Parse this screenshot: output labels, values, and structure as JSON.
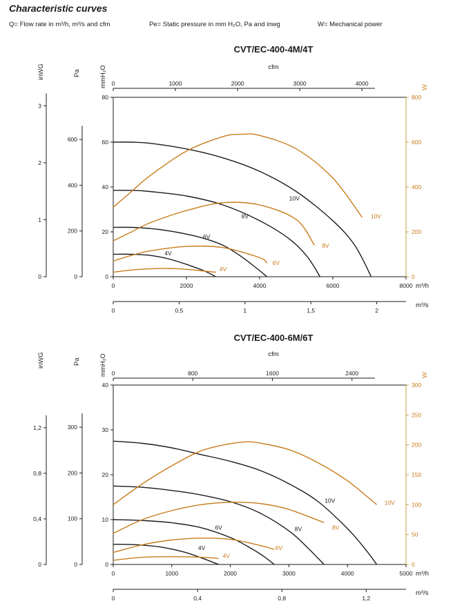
{
  "page": {
    "title": "Characteristic curves",
    "legend_flow": "Q= Flow rate in m³/h, m³/s and cfm",
    "legend_pressure": "Pe= Static pressure in mm H₂O, Pa and inwg",
    "legend_power": "W= Mechanical power"
  },
  "colors": {
    "pressure": "#1a1a1a",
    "power": "#c87b1a",
    "axis": "#1a1a1a",
    "power_axis": "#c8a040"
  },
  "chart_data": [
    {
      "type": "line",
      "title": "CVT/EC-400-4M/4T",
      "xlabel": "m³/h",
      "xlim": [
        0,
        8000
      ],
      "x_ticks": [
        0,
        2000,
        4000,
        6000,
        8000
      ],
      "x_tick_labels": [
        "0",
        "2000",
        "4000",
        "6000",
        "8000"
      ],
      "x2_label": "m³/s",
      "x2_ticks": [
        0,
        0.5,
        1,
        1.5,
        2
      ],
      "x2_tick_labels": [
        "0",
        "0,5",
        "1",
        "1,5",
        "2"
      ],
      "top_label": "cfm",
      "top_ticks": [
        0,
        1000,
        2000,
        3000,
        4000
      ],
      "top_tick_labels": [
        "0",
        "1000",
        "2000",
        "3000",
        "4000"
      ],
      "ylabel": "mmH₂O",
      "ylim": [
        0,
        80
      ],
      "y_ticks": [
        0,
        20,
        40,
        60,
        80
      ],
      "y_tick_labels": [
        "0",
        "20",
        "40",
        "60",
        "80"
      ],
      "pa_label": "Pa",
      "pa_ticks": [
        0,
        200,
        400,
        600
      ],
      "pa_tick_labels": [
        "0",
        "200",
        "400",
        "600"
      ],
      "inwg_label": "inWG",
      "inwg_ticks": [
        0,
        1,
        2,
        3
      ],
      "inwg_tick_labels": [
        "0",
        "1",
        "2",
        "3"
      ],
      "y2_label": "W",
      "y2lim": [
        0,
        800
      ],
      "y2_ticks": [
        0,
        200,
        400,
        600,
        800
      ],
      "y2_tick_labels": [
        "0",
        "200",
        "400",
        "600",
        "800"
      ],
      "pressure_series": [
        {
          "name": "10V",
          "x": [
            0,
            500,
            1000,
            2000,
            3000,
            4000,
            5000,
            6000,
            6600,
            7050
          ],
          "y": [
            60,
            60,
            59.5,
            57,
            53,
            47,
            38,
            25,
            14,
            0
          ]
        },
        {
          "name": "8V",
          "x": [
            0,
            500,
            1000,
            2000,
            3000,
            4000,
            4800,
            5300,
            5650
          ],
          "y": [
            38.5,
            38.5,
            38,
            36,
            32,
            25,
            17,
            9,
            0
          ]
        },
        {
          "name": "6V",
          "x": [
            0,
            500,
            1000,
            1500,
            2000,
            2500,
            3000,
            3500,
            3900,
            4200
          ],
          "y": [
            22,
            22,
            21.5,
            20.5,
            19,
            17,
            14,
            9,
            4,
            0
          ]
        },
        {
          "name": "4V",
          "x": [
            0,
            500,
            1000,
            1500,
            2000,
            2500,
            2800
          ],
          "y": [
            10,
            10,
            9.5,
            8,
            5.5,
            2.5,
            0
          ]
        }
      ],
      "power_series": [
        {
          "name": "10V",
          "x": [
            0,
            500,
            1000,
            2000,
            3000,
            3500,
            4000,
            5000,
            6000,
            6800
          ],
          "y": [
            310,
            380,
            450,
            560,
            625,
            635,
            630,
            570,
            440,
            265
          ]
        },
        {
          "name": "8V",
          "x": [
            0,
            500,
            1000,
            2000,
            3000,
            4000,
            5000,
            5500
          ],
          "y": [
            160,
            200,
            240,
            295,
            330,
            320,
            255,
            140
          ]
        },
        {
          "name": "6V",
          "x": [
            0,
            500,
            1000,
            2000,
            3000,
            4000,
            4200
          ],
          "y": [
            70,
            95,
            115,
            135,
            130,
            85,
            60
          ]
        },
        {
          "name": "4V",
          "x": [
            0,
            500,
            1000,
            1500,
            2000,
            2500,
            2800
          ],
          "y": [
            20,
            30,
            35,
            37,
            33,
            25,
            20
          ]
        }
      ],
      "pressure_labels": [
        {
          "text": "10V",
          "x": 4950,
          "y": 34
        },
        {
          "text": "8V",
          "x": 3600,
          "y": 26
        },
        {
          "text": "6V",
          "x": 2550,
          "y": 17
        },
        {
          "text": "4V",
          "x": 1500,
          "y": 9.5
        }
      ],
      "power_labels": [
        {
          "text": "10V",
          "x": 7180,
          "y": 260
        },
        {
          "text": "8V",
          "x": 5800,
          "y": 130
        },
        {
          "text": "6V",
          "x": 4450,
          "y": 52
        },
        {
          "text": "4V",
          "x": 3000,
          "y": 25
        }
      ]
    },
    {
      "type": "line",
      "title": "CVT/EC-400-6M/6T",
      "xlabel": "m³/h",
      "xlim": [
        0,
        5000
      ],
      "x_ticks": [
        0,
        1000,
        2000,
        3000,
        4000,
        5000
      ],
      "x_tick_labels": [
        "0",
        "1000",
        "2000",
        "3000",
        "4000",
        "5000"
      ],
      "x2_label": "m³/s",
      "x2_ticks": [
        0,
        0.4,
        0.8,
        1.2
      ],
      "x2_tick_labels": [
        "0",
        "0,4",
        "0,8",
        "1,2"
      ],
      "top_label": "cfm",
      "top_ticks": [
        0,
        800,
        1600,
        2400
      ],
      "top_tick_labels": [
        "0",
        "800",
        "1600",
        "2400"
      ],
      "ylabel": "mmH₂O",
      "ylim": [
        0,
        40
      ],
      "y_ticks": [
        0,
        10,
        20,
        30,
        40
      ],
      "y_tick_labels": [
        "0",
        "10",
        "20",
        "30",
        "40"
      ],
      "pa_label": "Pa",
      "pa_ticks": [
        0,
        100,
        200,
        300
      ],
      "pa_tick_labels": [
        "0",
        "100",
        "200",
        "300"
      ],
      "inwg_label": "inWG",
      "inwg_ticks": [
        0,
        0.4,
        0.8,
        1.2
      ],
      "inwg_tick_labels": [
        "0",
        "0,4",
        "0,8",
        "1,2"
      ],
      "y2_label": "W",
      "y2lim": [
        0,
        300
      ],
      "y2_ticks": [
        0,
        50,
        100,
        150,
        200,
        250,
        300
      ],
      "y2_tick_labels": [
        "0",
        "50",
        "100",
        "150",
        "200",
        "250",
        "300"
      ],
      "pressure_series": [
        {
          "name": "10V",
          "x": [
            0,
            500,
            1000,
            1500,
            2000,
            2500,
            3000,
            3500,
            4000,
            4300,
            4500
          ],
          "y": [
            27.5,
            27,
            26,
            24.5,
            23,
            21,
            18,
            14,
            8,
            3.5,
            0
          ]
        },
        {
          "name": "8V",
          "x": [
            0,
            500,
            1000,
            1500,
            2000,
            2500,
            3000,
            3300,
            3600
          ],
          "y": [
            17.5,
            17.2,
            16.5,
            15.5,
            14,
            11.5,
            7.5,
            4,
            0
          ]
        },
        {
          "name": "6V",
          "x": [
            0,
            500,
            1000,
            1500,
            2000,
            2300,
            2550,
            2750
          ],
          "y": [
            10,
            9.8,
            9.3,
            8.2,
            6,
            4,
            2,
            0
          ]
        },
        {
          "name": "4V",
          "x": [
            0,
            400,
            800,
            1200,
            1500,
            1800
          ],
          "y": [
            4.5,
            4.4,
            3.9,
            2.8,
            1.5,
            0
          ]
        }
      ],
      "power_series": [
        {
          "name": "10V",
          "x": [
            0,
            500,
            1000,
            1500,
            2000,
            2300,
            2500,
            3000,
            3500,
            4000,
            4500
          ],
          "y": [
            100,
            135,
            165,
            190,
            202,
            205,
            203,
            192,
            170,
            140,
            100
          ]
        },
        {
          "name": "8V",
          "x": [
            0,
            500,
            1000,
            1500,
            2000,
            2500,
            3000,
            3600
          ],
          "y": [
            52,
            75,
            90,
            100,
            104,
            102,
            92,
            70
          ]
        },
        {
          "name": "6V",
          "x": [
            0,
            500,
            1000,
            1500,
            2000,
            2500,
            2750
          ],
          "y": [
            20,
            33,
            41,
            44,
            42,
            32,
            25
          ]
        },
        {
          "name": "4V",
          "x": [
            0,
            500,
            1000,
            1500,
            1800
          ],
          "y": [
            7,
            12,
            13,
            12,
            10
          ]
        }
      ],
      "pressure_labels": [
        {
          "text": "10V",
          "x": 3700,
          "y": 13.8
        },
        {
          "text": "8V",
          "x": 3160,
          "y": 7.5
        },
        {
          "text": "6V",
          "x": 1800,
          "y": 7.8
        },
        {
          "text": "4V",
          "x": 1510,
          "y": 3.2
        }
      ],
      "power_labels": [
        {
          "text": "10V",
          "x": 4720,
          "y": 100
        },
        {
          "text": "8V",
          "x": 3800,
          "y": 58
        },
        {
          "text": "6V",
          "x": 2830,
          "y": 24
        },
        {
          "text": "4V",
          "x": 1930,
          "y": 11
        }
      ]
    }
  ]
}
